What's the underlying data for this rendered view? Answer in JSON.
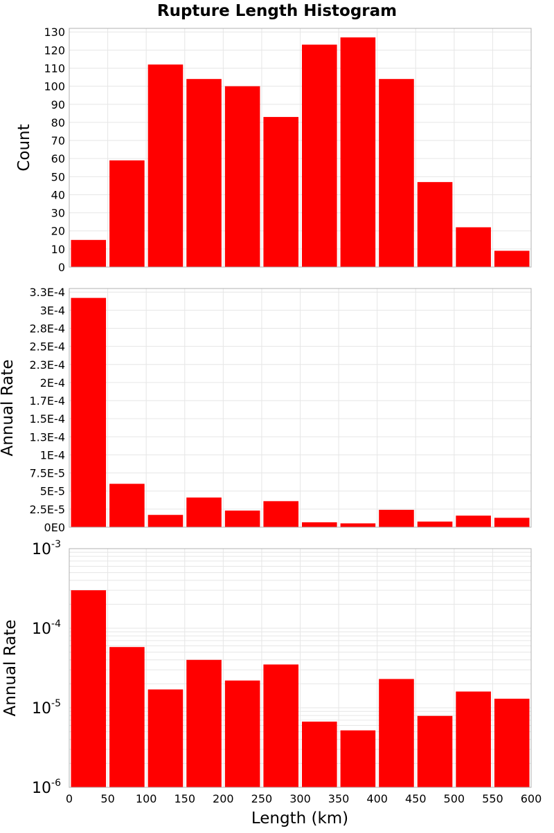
{
  "chart_data": {
    "title": "Rupture Length Histogram",
    "type": "bar",
    "xlabel": "Length (km)",
    "xlim": [
      0,
      600
    ],
    "bin_width": 50,
    "x_ticks": [
      "0",
      "50",
      "100",
      "150",
      "200",
      "250",
      "300",
      "350",
      "400",
      "450",
      "500",
      "550",
      "600"
    ],
    "bins": [
      {
        "x_start": 0,
        "x_end": 50
      },
      {
        "x_start": 50,
        "x_end": 100
      },
      {
        "x_start": 100,
        "x_end": 150
      },
      {
        "x_start": 150,
        "x_end": 200
      },
      {
        "x_start": 200,
        "x_end": 250
      },
      {
        "x_start": 250,
        "x_end": 300
      },
      {
        "x_start": 300,
        "x_end": 350
      },
      {
        "x_start": 350,
        "x_end": 400
      },
      {
        "x_start": 400,
        "x_end": 450
      },
      {
        "x_start": 450,
        "x_end": 500
      },
      {
        "x_start": 500,
        "x_end": 550
      },
      {
        "x_start": 550,
        "x_end": 600
      }
    ],
    "grid": true,
    "bar_color": "#ff0000",
    "panels": [
      {
        "ylabel": "Count",
        "yscale": "linear",
        "ylim": [
          0,
          132
        ],
        "y_ticks": [
          {
            "value": 0,
            "label": "0"
          },
          {
            "value": 10,
            "label": "10"
          },
          {
            "value": 20,
            "label": "20"
          },
          {
            "value": 30,
            "label": "30"
          },
          {
            "value": 40,
            "label": "40"
          },
          {
            "value": 50,
            "label": "50"
          },
          {
            "value": 60,
            "label": "60"
          },
          {
            "value": 70,
            "label": "70"
          },
          {
            "value": 80,
            "label": "80"
          },
          {
            "value": 90,
            "label": "90"
          },
          {
            "value": 100,
            "label": "100"
          },
          {
            "value": 110,
            "label": "110"
          },
          {
            "value": 120,
            "label": "120"
          },
          {
            "value": 130,
            "label": "130"
          }
        ],
        "values": [
          15,
          59,
          112,
          104,
          100,
          83,
          123,
          127,
          104,
          47,
          22,
          9
        ]
      },
      {
        "ylabel": "Annual Rate",
        "yscale": "linear",
        "ylim": [
          0,
          0.00033
        ],
        "y_ticks": [
          {
            "value": 0,
            "label": "0E0"
          },
          {
            "value": 2.5e-05,
            "label": "2.5E-5"
          },
          {
            "value": 5e-05,
            "label": "5E-5"
          },
          {
            "value": 7.5e-05,
            "label": "7.5E-5"
          },
          {
            "value": 0.0001,
            "label": "1E-4"
          },
          {
            "value": 0.000125,
            "label": "1.3E-4"
          },
          {
            "value": 0.00015,
            "label": "1.5E-4"
          },
          {
            "value": 0.000175,
            "label": "1.7E-4"
          },
          {
            "value": 0.0002,
            "label": "2E-4"
          },
          {
            "value": 0.000225,
            "label": "2.3E-4"
          },
          {
            "value": 0.00025,
            "label": "2.5E-4"
          },
          {
            "value": 0.000275,
            "label": "2.8E-4"
          },
          {
            "value": 0.0003,
            "label": "3E-4"
          },
          {
            "value": 0.000325,
            "label": "3.3E-4"
          }
        ],
        "values": [
          0.000317,
          6e-05,
          1.7e-05,
          4.1e-05,
          2.3e-05,
          3.6e-05,
          6.8e-06,
          5.3e-06,
          2.4e-05,
          7.8e-06,
          1.6e-05,
          1.3e-05
        ]
      },
      {
        "ylabel": "Annual Rate",
        "yscale": "log",
        "ylim": [
          1e-06,
          0.001
        ],
        "y_ticks": [
          {
            "value": 0.001,
            "base": "10",
            "exp": "-3"
          },
          {
            "value": 0.0001,
            "base": "10",
            "exp": "-4"
          },
          {
            "value": 1e-05,
            "base": "10",
            "exp": "-5"
          },
          {
            "value": 1e-06,
            "base": "10",
            "exp": "-6"
          }
        ],
        "values": [
          0.0003,
          5.8e-05,
          1.7e-05,
          4e-05,
          2.2e-05,
          3.5e-05,
          6.7e-06,
          5.2e-06,
          2.3e-05,
          7.9e-06,
          1.6e-05,
          1.3e-05
        ]
      }
    ]
  }
}
